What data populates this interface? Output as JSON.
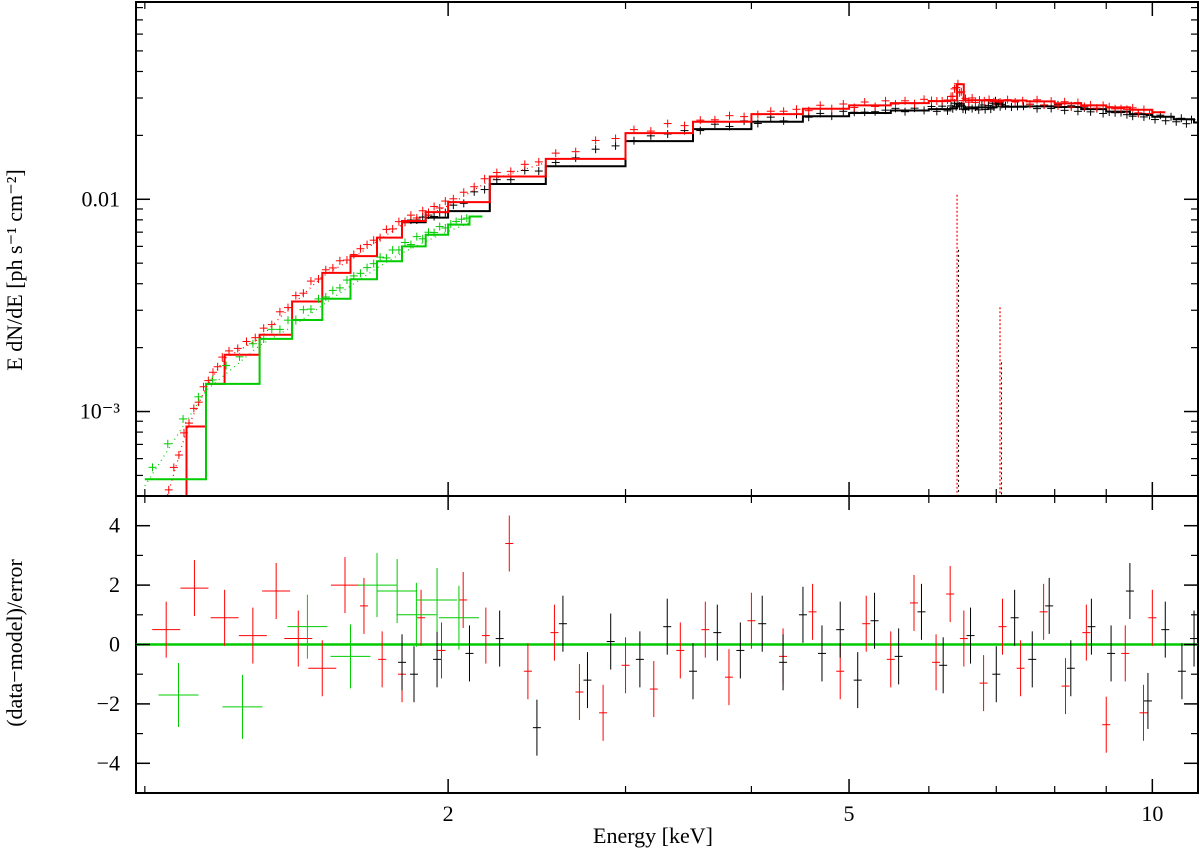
{
  "chart_data": [
    {
      "type": "line",
      "panel": "top",
      "xlabel": "",
      "ylabel": "E dN/dE [ph s⁻¹ cm⁻²]",
      "xscale": "log",
      "yscale": "log",
      "xlim": [
        0.98,
        11.1
      ],
      "ylim": [
        0.0004,
        0.085
      ],
      "y_tick_labels": [
        "0.01",
        "10⁻³"
      ],
      "y_ticks": [
        0.01,
        0.001
      ],
      "series": [
        {
          "color": "#000000",
          "style": "step-model-with-crosses",
          "energy_keV": [
            1.8,
            1.9,
            2.0,
            2.2,
            2.5,
            3.0,
            3.5,
            4.0,
            4.5,
            5.0,
            5.5,
            6.0,
            6.3,
            6.4,
            6.5,
            6.7,
            6.9,
            7.0,
            7.1,
            7.5,
            8.0,
            8.5,
            9.0,
            9.5,
            10.0,
            10.5,
            11.0
          ],
          "value": [
            0.0078,
            0.0082,
            0.0088,
            0.0118,
            0.0143,
            0.0188,
            0.0214,
            0.0232,
            0.0246,
            0.0255,
            0.0262,
            0.0266,
            0.0268,
            0.0282,
            0.0268,
            0.0271,
            0.0271,
            0.0285,
            0.0273,
            0.0274,
            0.0272,
            0.0266,
            0.0259,
            0.0252,
            0.0245,
            0.0238,
            0.023
          ]
        },
        {
          "color": "#ff0000",
          "style": "step-model-with-crosses",
          "energy_keV": [
            1.05,
            1.1,
            1.15,
            1.2,
            1.3,
            1.4,
            1.5,
            1.6,
            1.7,
            1.8,
            1.9,
            2.0,
            2.2,
            2.5,
            3.0,
            3.5,
            4.0,
            4.5,
            5.0,
            5.5,
            6.0,
            6.3,
            6.4,
            6.5,
            6.7,
            7.0,
            7.5,
            8.0,
            8.5,
            9.0,
            9.5,
            10.0
          ],
          "value": [
            0.0004,
            0.00085,
            0.00135,
            0.00185,
            0.0023,
            0.0033,
            0.0045,
            0.0054,
            0.0066,
            0.0079,
            0.0087,
            0.0097,
            0.0128,
            0.0155,
            0.0205,
            0.0232,
            0.0252,
            0.0267,
            0.0277,
            0.0284,
            0.029,
            0.0292,
            0.0348,
            0.0293,
            0.0293,
            0.0292,
            0.0289,
            0.0283,
            0.0277,
            0.0271,
            0.0264,
            0.0257
          ]
        },
        {
          "color": "#00cc00",
          "style": "step-model-with-crosses",
          "energy_keV": [
            1.0,
            1.15,
            1.3,
            1.4,
            1.5,
            1.6,
            1.7,
            1.8,
            1.9,
            2.0,
            2.1
          ],
          "value": [
            0.00048,
            0.00135,
            0.0022,
            0.0027,
            0.0034,
            0.0042,
            0.0051,
            0.006,
            0.0068,
            0.0076,
            0.0083
          ]
        }
      ],
      "line_markers": [
        {
          "energy_keV": 6.4,
          "color": "#ff0000",
          "top": 0.0105
        },
        {
          "energy_keV": 7.06,
          "color": "#ff0000",
          "top": 0.0031
        }
      ]
    },
    {
      "type": "scatter",
      "panel": "bottom",
      "xlabel": "Energy [keV]",
      "ylabel": "(data−model)/error",
      "xscale": "log",
      "xlim": [
        0.98,
        11.1
      ],
      "ylim": [
        -5,
        5
      ],
      "x_ticks": [
        2,
        5,
        10
      ],
      "x_tick_labels": [
        "2",
        "5",
        "10"
      ],
      "y_ticks": [
        4,
        2,
        0,
        -2,
        -4
      ],
      "y_tick_labels": [
        "4",
        "2",
        "0",
        "−2",
        "−4"
      ],
      "zero_line_color": "#00cc00",
      "series": [
        {
          "color": "#ff0000",
          "points": [
            [
              1.05,
              0.5
            ],
            [
              1.12,
              1.9
            ],
            [
              1.2,
              0.9
            ],
            [
              1.28,
              0.3
            ],
            [
              1.35,
              1.8
            ],
            [
              1.42,
              0.2
            ],
            [
              1.5,
              -0.8
            ],
            [
              1.58,
              2.0
            ],
            [
              1.65,
              1.3
            ],
            [
              1.72,
              -0.5
            ],
            [
              1.8,
              -1.0
            ],
            [
              1.88,
              0.9
            ],
            [
              1.97,
              -0.2
            ],
            [
              2.07,
              1.5
            ],
            [
              2.18,
              0.3
            ],
            [
              2.3,
              3.4
            ],
            [
              2.4,
              -0.9
            ],
            [
              2.55,
              0.4
            ],
            [
              2.7,
              -1.6
            ],
            [
              2.85,
              -2.3
            ],
            [
              3.0,
              -0.7
            ],
            [
              3.2,
              -1.5
            ],
            [
              3.4,
              -0.2
            ],
            [
              3.6,
              0.5
            ],
            [
              3.8,
              -1.1
            ],
            [
              4.0,
              0.8
            ],
            [
              4.3,
              -0.4
            ],
            [
              4.6,
              1.1
            ],
            [
              4.9,
              -0.9
            ],
            [
              5.2,
              0.7
            ],
            [
              5.5,
              -0.5
            ],
            [
              5.8,
              1.4
            ],
            [
              6.1,
              -0.6
            ],
            [
              6.3,
              1.7
            ],
            [
              6.5,
              0.2
            ],
            [
              6.8,
              -1.3
            ],
            [
              7.1,
              0.6
            ],
            [
              7.4,
              -0.8
            ],
            [
              7.8,
              1.1
            ],
            [
              8.2,
              -1.4
            ],
            [
              8.6,
              0.4
            ],
            [
              9.0,
              -2.7
            ],
            [
              9.4,
              -0.3
            ],
            [
              9.8,
              -2.3
            ],
            [
              10.0,
              0.9
            ]
          ]
        },
        {
          "color": "#000000",
          "points": [
            [
              1.8,
              -0.6
            ],
            [
              1.85,
              -1.0
            ],
            [
              1.95,
              -0.5
            ],
            [
              2.1,
              -0.3
            ],
            [
              2.25,
              0.2
            ],
            [
              2.45,
              -2.8
            ],
            [
              2.6,
              0.7
            ],
            [
              2.75,
              -1.2
            ],
            [
              2.9,
              0.1
            ],
            [
              3.1,
              -0.5
            ],
            [
              3.3,
              0.6
            ],
            [
              3.5,
              -0.9
            ],
            [
              3.7,
              0.4
            ],
            [
              3.9,
              -0.2
            ],
            [
              4.1,
              0.7
            ],
            [
              4.3,
              -0.6
            ],
            [
              4.5,
              1.0
            ],
            [
              4.7,
              -0.3
            ],
            [
              4.9,
              0.5
            ],
            [
              5.1,
              -1.2
            ],
            [
              5.3,
              0.8
            ],
            [
              5.6,
              -0.4
            ],
            [
              5.9,
              1.1
            ],
            [
              6.2,
              -0.7
            ],
            [
              6.6,
              0.3
            ],
            [
              7.0,
              -1.0
            ],
            [
              7.3,
              0.9
            ],
            [
              7.6,
              -0.5
            ],
            [
              7.9,
              1.3
            ],
            [
              8.3,
              -0.8
            ],
            [
              8.7,
              0.6
            ],
            [
              9.1,
              -0.3
            ],
            [
              9.5,
              1.8
            ],
            [
              9.9,
              -1.9
            ],
            [
              10.3,
              0.5
            ],
            [
              10.7,
              -0.9
            ],
            [
              11.0,
              0.2
            ]
          ]
        },
        {
          "color": "#00cc00",
          "points": [
            [
              1.08,
              -1.7
            ],
            [
              1.25,
              -2.1
            ],
            [
              1.45,
              0.6
            ],
            [
              1.6,
              -0.4
            ],
            [
              1.7,
              2.0
            ],
            [
              1.78,
              1.8
            ],
            [
              1.86,
              1.0
            ],
            [
              1.95,
              1.5
            ],
            [
              2.05,
              0.9
            ]
          ]
        }
      ]
    }
  ]
}
